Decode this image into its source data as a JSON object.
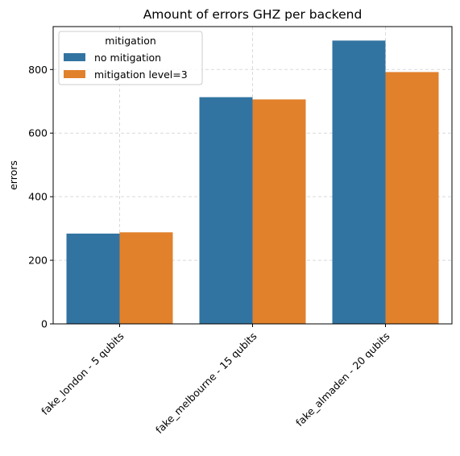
{
  "chart_data": {
    "type": "bar",
    "title": "Amount of errors GHZ per backend",
    "xlabel": "",
    "ylabel": "errors",
    "categories": [
      "fake_london - 5 qubits",
      "fake_melbourne - 15 qubits",
      "fake_almaden - 20 qubits"
    ],
    "series": [
      {
        "name": "no mitigation",
        "values": [
          284,
          713,
          891
        ],
        "color": "#3274a1"
      },
      {
        "name": "mitigation level=3",
        "values": [
          288,
          706,
          792
        ],
        "color": "#e1812c"
      }
    ],
    "ylim": [
      0,
      935
    ],
    "yticks": [
      "0",
      "200",
      "400",
      "600",
      "800"
    ],
    "grid": true,
    "legend": {
      "title": "mitigation",
      "placement": "top-left"
    }
  }
}
